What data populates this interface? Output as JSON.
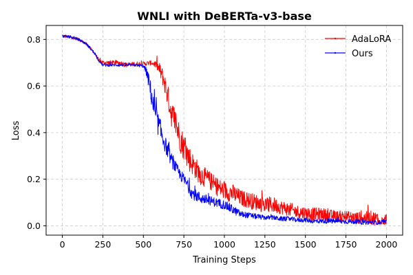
{
  "chart_data": {
    "type": "line",
    "title": "WNLI with DeBERTa-v3-base",
    "xlabel": "Training  Steps",
    "ylabel": "Loss",
    "xlim": [
      -100,
      2100
    ],
    "ylim": [
      -0.04,
      0.86
    ],
    "xticks": [
      0,
      250,
      500,
      750,
      1000,
      1250,
      1500,
      1750,
      2000
    ],
    "xtick_labels": [
      "0",
      "250",
      "500",
      "750",
      "1000",
      "1250",
      "1500",
      "1750",
      "2000"
    ],
    "yticks": [
      0.0,
      0.2,
      0.4,
      0.6,
      0.8
    ],
    "ytick_labels": [
      "0.0",
      "0.2",
      "0.4",
      "0.6",
      "0.8"
    ],
    "grid": true,
    "legend_position": "top-right",
    "series": [
      {
        "name": "AdaLoRA",
        "color": "#ff0000",
        "x": [
          0,
          50,
          100,
          150,
          200,
          225,
          250,
          300,
          350,
          400,
          450,
          500,
          550,
          580,
          600,
          625,
          650,
          675,
          700,
          725,
          750,
          775,
          800,
          850,
          900,
          950,
          1000,
          1050,
          1100,
          1150,
          1200,
          1250,
          1300,
          1350,
          1400,
          1450,
          1500,
          1550,
          1600,
          1650,
          1700,
          1750,
          1800,
          1850,
          1900,
          1950,
          2000
        ],
        "y": [
          0.815,
          0.81,
          0.8,
          0.78,
          0.74,
          0.71,
          0.7,
          0.7,
          0.7,
          0.69,
          0.695,
          0.695,
          0.7,
          0.69,
          0.67,
          0.63,
          0.56,
          0.48,
          0.44,
          0.38,
          0.34,
          0.3,
          0.27,
          0.22,
          0.2,
          0.17,
          0.15,
          0.14,
          0.12,
          0.11,
          0.1,
          0.09,
          0.09,
          0.08,
          0.07,
          0.06,
          0.055,
          0.05,
          0.05,
          0.045,
          0.04,
          0.04,
          0.035,
          0.035,
          0.035,
          0.03,
          0.03
        ],
        "noise": [
          0.006,
          0.006,
          0.006,
          0.006,
          0.006,
          0.008,
          0.01,
          0.01,
          0.01,
          0.01,
          0.01,
          0.01,
          0.01,
          0.015,
          0.03,
          0.04,
          0.05,
          0.06,
          0.06,
          0.06,
          0.06,
          0.06,
          0.05,
          0.045,
          0.04,
          0.04,
          0.04,
          0.04,
          0.035,
          0.035,
          0.035,
          0.035,
          0.035,
          0.03,
          0.03,
          0.03,
          0.028,
          0.028,
          0.028,
          0.025,
          0.025,
          0.025,
          0.025,
          0.025,
          0.03,
          0.03,
          0.025
        ]
      },
      {
        "name": "Ours",
        "color": "#0000ff",
        "x": [
          0,
          50,
          100,
          150,
          200,
          225,
          250,
          300,
          350,
          400,
          450,
          500,
          520,
          540,
          560,
          580,
          600,
          625,
          650,
          675,
          700,
          725,
          750,
          775,
          800,
          850,
          900,
          950,
          1000,
          1050,
          1100,
          1150,
          1200,
          1250,
          1300,
          1350,
          1400,
          1450,
          1500,
          1550,
          1600,
          1650,
          1700,
          1750,
          1800,
          1850,
          1900,
          1950,
          2000
        ],
        "y": [
          0.815,
          0.81,
          0.8,
          0.78,
          0.74,
          0.71,
          0.69,
          0.69,
          0.69,
          0.69,
          0.69,
          0.685,
          0.66,
          0.6,
          0.52,
          0.46,
          0.42,
          0.37,
          0.32,
          0.28,
          0.25,
          0.22,
          0.2,
          0.17,
          0.14,
          0.12,
          0.11,
          0.1,
          0.09,
          0.07,
          0.05,
          0.045,
          0.04,
          0.035,
          0.035,
          0.03,
          0.03,
          0.025,
          0.025,
          0.02,
          0.02,
          0.02,
          0.02,
          0.018,
          0.018,
          0.015,
          0.015,
          0.015,
          0.015
        ],
        "noise": [
          0.006,
          0.006,
          0.006,
          0.006,
          0.006,
          0.006,
          0.006,
          0.006,
          0.006,
          0.006,
          0.006,
          0.006,
          0.02,
          0.04,
          0.05,
          0.05,
          0.05,
          0.04,
          0.03,
          0.03,
          0.025,
          0.025,
          0.025,
          0.025,
          0.025,
          0.025,
          0.02,
          0.02,
          0.02,
          0.02,
          0.015,
          0.012,
          0.012,
          0.01,
          0.01,
          0.01,
          0.01,
          0.01,
          0.01,
          0.01,
          0.01,
          0.01,
          0.01,
          0.01,
          0.01,
          0.01,
          0.01,
          0.01,
          0.01
        ]
      }
    ]
  }
}
